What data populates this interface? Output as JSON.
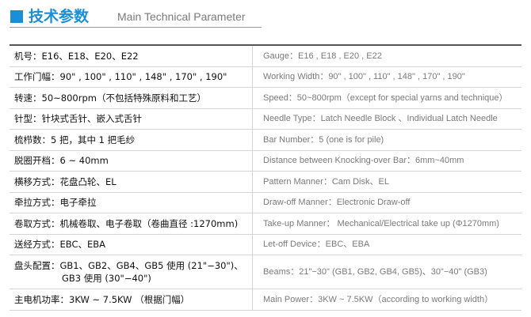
{
  "header": {
    "title": "技术参数",
    "subtitle": "Main Technical Parameter"
  },
  "table": {
    "rows": [
      {
        "cn": [
          "机号：E16、E18、E20、E22"
        ],
        "en": "Gauge：E16 , E18 , E20 , E22"
      },
      {
        "cn": [
          "工作门幅：90\" , 100\" , 110\" , 148\" , 170\" , 190\""
        ],
        "en": "Working Width：90\" , 100\" , 110\" , 148\" , 170\" , 190\""
      },
      {
        "cn": [
          "转速：50~800rpm（不包括特殊原料和工艺）"
        ],
        "en": "Speed：50~800rpm（except for special yarns and technique）"
      },
      {
        "cn": [
          "针型：针块式舌针、嵌入式舌针"
        ],
        "en": "Needle Type：Latch Needle Block 、Individual Latch Needle"
      },
      {
        "cn": [
          "梳栉数：5 把，其中 1 把毛纱"
        ],
        "en": "Bar Number：5 (one is for pile)"
      },
      {
        "cn": [
          "脱圈开档：6 ~ 40mm"
        ],
        "en": "Distance between Knocking-over Bar：6mm~40mm"
      },
      {
        "cn": [
          "横移方式：花盘凸轮、EL"
        ],
        "en": "Pattern Manner：Cam Disk、EL"
      },
      {
        "cn": [
          "牵拉方式：电子牵拉"
        ],
        "en": "Draw-off Manner：Electronic Draw-off"
      },
      {
        "cn": [
          "卷取方式：机械卷取、电子卷取（卷曲直径 :1270mm)"
        ],
        "en": "Take-up Manner： Mechanical/Electrical take up (Φ1270mm)"
      },
      {
        "cn": [
          "送经方式：EBC、EBA"
        ],
        "en": "Let-off Device：EBC、EBA"
      },
      {
        "cn": [
          "盘头配置：GB1、GB2、GB4、GB5 使用 (21\"−30\")、",
          "GB3 使用 (30\"−40\")"
        ],
        "en": "Beams：21\"−30\" (GB1, GB2, GB4, GB5)、30\"−40\" (GB3)"
      },
      {
        "cn": [
          "主电机功率：3KW ~ 7.5KW （根据门幅）"
        ],
        "en": "Main Power：3KW ~ 7.5KW（according to working width）"
      }
    ]
  }
}
